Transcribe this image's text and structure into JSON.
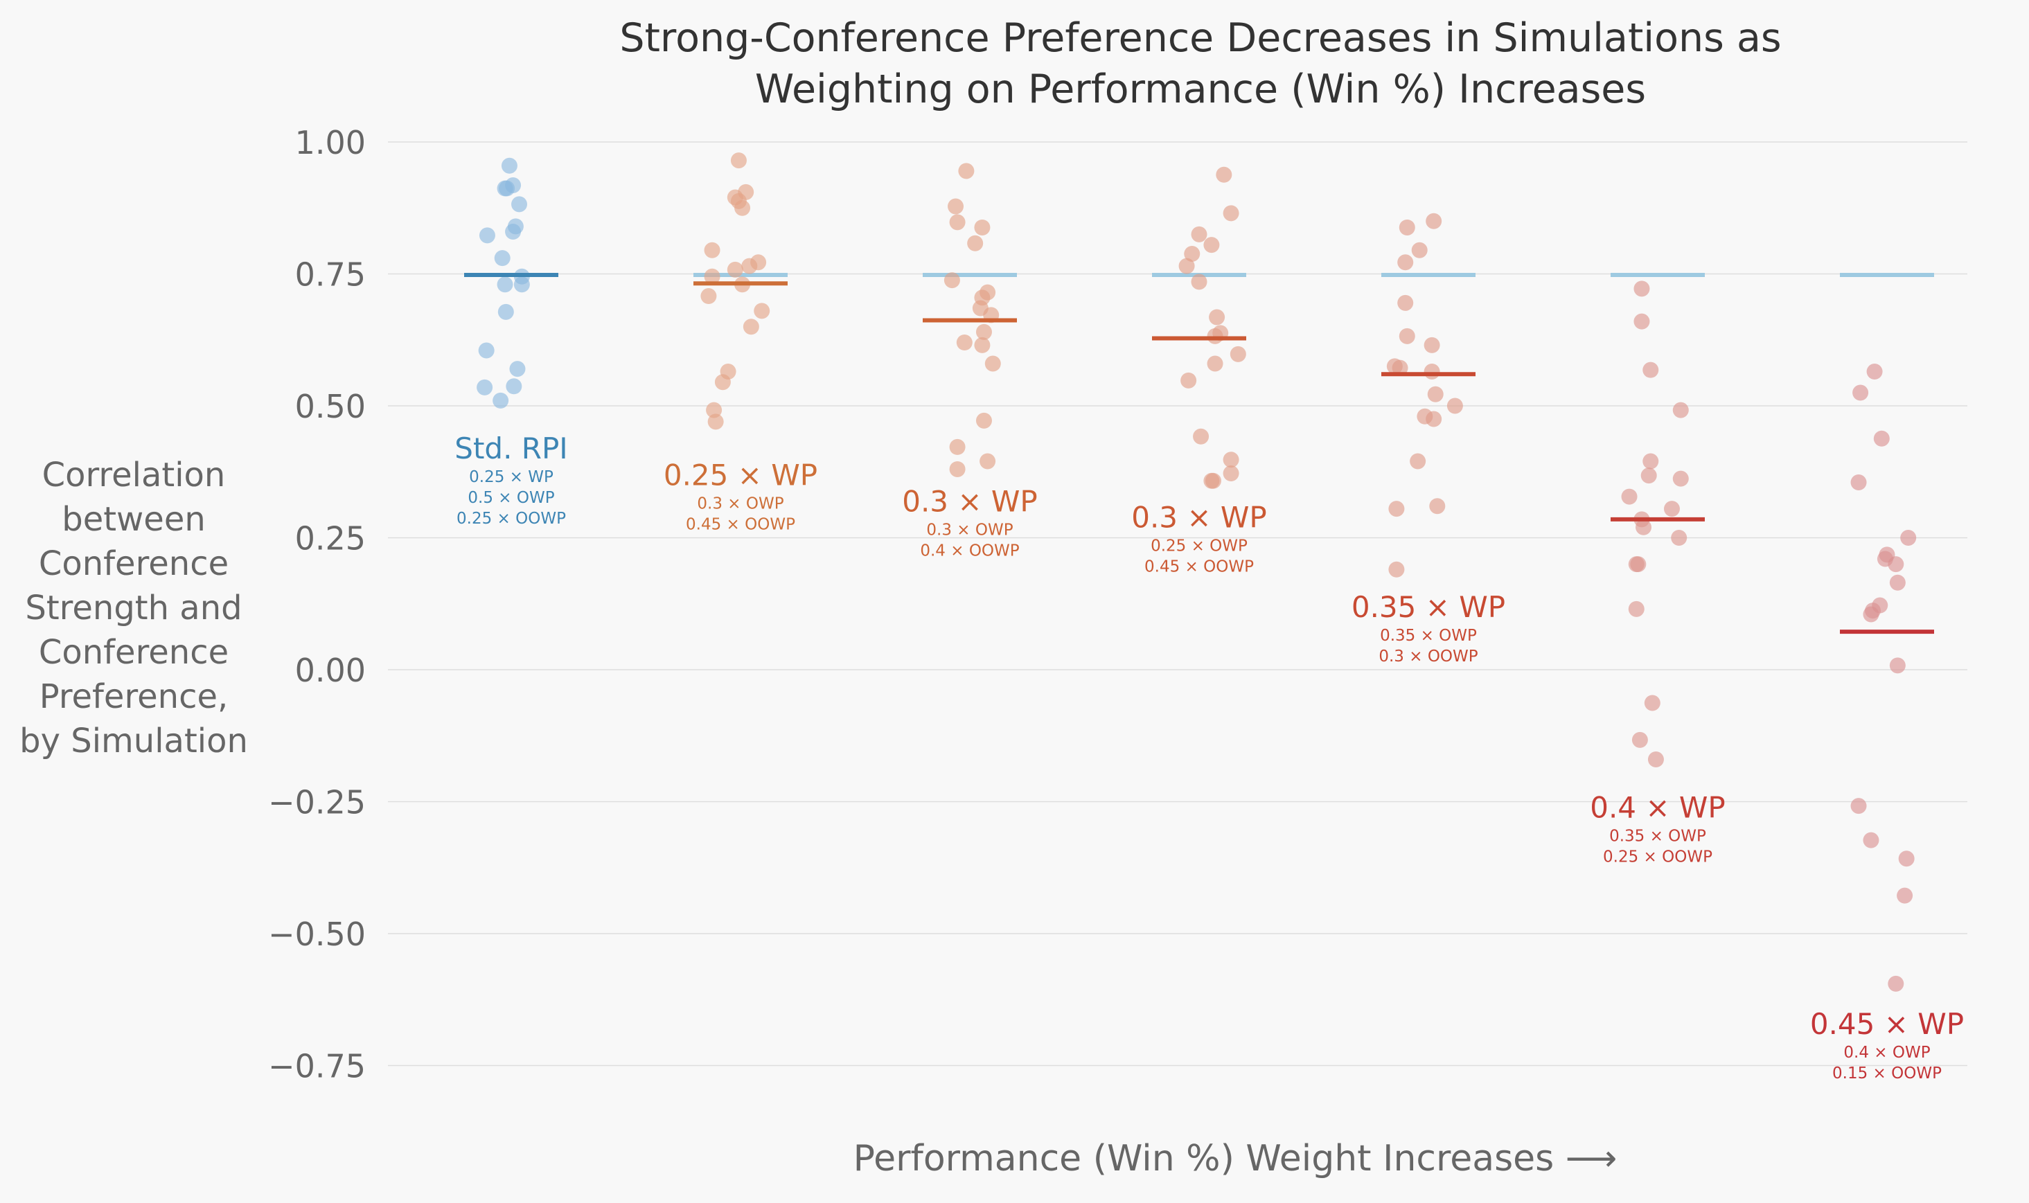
{
  "chart_data": {
    "type": "scatter",
    "title_lines": [
      "Strong-Conference Preference Decreases in Simulations as",
      "Weighting on Performance (Win %) Increases"
    ],
    "ylabel_lines": [
      "Correlation",
      "between",
      "Conference",
      "Strength and",
      "Conference",
      "Preference,",
      "by Simulation"
    ],
    "xlabel": "Performance (Win %) Weight Increases ⟶",
    "yticks": [
      1.0,
      0.75,
      0.5,
      0.25,
      0.0,
      -0.25,
      -0.5,
      -0.75
    ],
    "ytick_labels": [
      "1.00",
      "0.75",
      "0.50",
      "0.25",
      "0.00",
      "−0.25",
      "−0.50",
      "−0.75"
    ],
    "ylim": [
      -0.85,
      1.05
    ],
    "grid": true,
    "reference_line": 0.748,
    "colors": {
      "background": "#f8f8f8",
      "grid": "#dddddd",
      "axis_text": "#666666",
      "reference": "#9ecae1"
    },
    "groups": [
      {
        "label": "Std. RPI",
        "sub_lines": [
          "0.25 × WP",
          "0.5 × OWP",
          "0.25 × OOWP"
        ],
        "color": "#3d85b4",
        "point_color": "#8ab8df",
        "mean": 0.748,
        "label_y": 0.4,
        "points": [
          [
            -0.02,
            0.955
          ],
          [
            -0.07,
            0.912
          ],
          [
            -0.05,
            0.912
          ],
          [
            0.02,
            0.918
          ],
          [
            0.09,
            0.882
          ],
          [
            -0.27,
            0.823
          ],
          [
            0.02,
            0.83
          ],
          [
            0.05,
            0.84
          ],
          [
            -0.1,
            0.78
          ],
          [
            0.12,
            0.745
          ],
          [
            -0.07,
            0.73
          ],
          [
            0.12,
            0.73
          ],
          [
            -0.06,
            0.678
          ],
          [
            -0.28,
            0.605
          ],
          [
            0.07,
            0.57
          ],
          [
            -0.3,
            0.535
          ],
          [
            0.03,
            0.537
          ],
          [
            -0.12,
            0.51
          ]
        ]
      },
      {
        "label": "0.25 × WP",
        "sub_lines": [
          "0.3 × OWP",
          "0.45 × OOWP"
        ],
        "color": "#cd6f38",
        "point_color": "#e3a386",
        "mean": 0.732,
        "label_y": 0.35,
        "points": [
          [
            -0.02,
            0.965
          ],
          [
            0.06,
            0.905
          ],
          [
            -0.06,
            0.895
          ],
          [
            -0.02,
            0.888
          ],
          [
            0.02,
            0.875
          ],
          [
            -0.32,
            0.795
          ],
          [
            0.2,
            0.772
          ],
          [
            0.1,
            0.765
          ],
          [
            -0.06,
            0.758
          ],
          [
            -0.32,
            0.745
          ],
          [
            0.02,
            0.73
          ],
          [
            -0.36,
            0.708
          ],
          [
            0.24,
            0.68
          ],
          [
            0.12,
            0.65
          ],
          [
            -0.14,
            0.565
          ],
          [
            -0.2,
            0.545
          ],
          [
            -0.3,
            0.492
          ],
          [
            -0.28,
            0.47
          ]
        ]
      },
      {
        "label": "0.3 × WP",
        "sub_lines": [
          "0.3 × OWP",
          "0.4 × OOWP"
        ],
        "color": "#cd6334",
        "point_color": "#e2a085",
        "mean": 0.662,
        "label_y": 0.3,
        "points": [
          [
            -0.04,
            0.945
          ],
          [
            -0.16,
            0.878
          ],
          [
            -0.14,
            0.848
          ],
          [
            0.14,
            0.838
          ],
          [
            0.06,
            0.808
          ],
          [
            -0.2,
            0.738
          ],
          [
            0.2,
            0.715
          ],
          [
            0.14,
            0.705
          ],
          [
            0.12,
            0.685
          ],
          [
            0.24,
            0.672
          ],
          [
            0.16,
            0.64
          ],
          [
            -0.06,
            0.62
          ],
          [
            0.14,
            0.615
          ],
          [
            0.26,
            0.58
          ],
          [
            0.16,
            0.472
          ],
          [
            -0.14,
            0.422
          ],
          [
            0.2,
            0.395
          ],
          [
            -0.14,
            0.38
          ]
        ]
      },
      {
        "label": "0.3 × WP",
        "sub_lines": [
          "0.25 × OWP",
          "0.45 × OOWP"
        ],
        "color": "#cb5933",
        "point_color": "#e19d86",
        "mean": 0.628,
        "label_y": 0.27,
        "points": [
          [
            0.28,
            0.938
          ],
          [
            0.36,
            0.865
          ],
          [
            0.0,
            0.825
          ],
          [
            0.14,
            0.805
          ],
          [
            -0.08,
            0.788
          ],
          [
            -0.14,
            0.765
          ],
          [
            0.0,
            0.735
          ],
          [
            0.2,
            0.668
          ],
          [
            0.24,
            0.638
          ],
          [
            0.18,
            0.632
          ],
          [
            0.44,
            0.598
          ],
          [
            0.18,
            0.58
          ],
          [
            -0.12,
            0.548
          ],
          [
            0.02,
            0.442
          ],
          [
            0.36,
            0.398
          ],
          [
            0.36,
            0.372
          ],
          [
            0.14,
            0.358
          ],
          [
            0.16,
            0.358
          ]
        ]
      },
      {
        "label": "0.35 × WP",
        "sub_lines": [
          "0.35 × OWP",
          "0.3 × OOWP"
        ],
        "color": "#c84a32",
        "point_color": "#df9a88",
        "mean": 0.56,
        "label_y": 0.1,
        "points": [
          [
            0.06,
            0.85
          ],
          [
            -0.24,
            0.838
          ],
          [
            -0.1,
            0.795
          ],
          [
            -0.26,
            0.772
          ],
          [
            -0.26,
            0.695
          ],
          [
            -0.24,
            0.632
          ],
          [
            0.04,
            0.615
          ],
          [
            -0.38,
            0.575
          ],
          [
            -0.32,
            0.572
          ],
          [
            0.04,
            0.565
          ],
          [
            0.08,
            0.522
          ],
          [
            0.3,
            0.5
          ],
          [
            -0.04,
            0.48
          ],
          [
            0.06,
            0.475
          ],
          [
            -0.12,
            0.395
          ],
          [
            0.1,
            0.31
          ],
          [
            -0.36,
            0.305
          ],
          [
            -0.36,
            0.19
          ]
        ]
      },
      {
        "label": "0.4 × WP",
        "sub_lines": [
          "0.35 × OWP",
          "0.25 × OOWP"
        ],
        "color": "#c53f35",
        "point_color": "#dc958c",
        "mean": 0.285,
        "label_y": -0.28,
        "points": [
          [
            -0.18,
            0.722
          ],
          [
            -0.18,
            0.66
          ],
          [
            -0.08,
            0.568
          ],
          [
            0.26,
            0.492
          ],
          [
            -0.08,
            0.395
          ],
          [
            -0.1,
            0.368
          ],
          [
            0.26,
            0.362
          ],
          [
            -0.32,
            0.328
          ],
          [
            0.16,
            0.305
          ],
          [
            -0.18,
            0.285
          ],
          [
            -0.16,
            0.27
          ],
          [
            0.24,
            0.25
          ],
          [
            -0.24,
            0.2
          ],
          [
            -0.22,
            0.2
          ],
          [
            -0.24,
            0.115
          ],
          [
            -0.06,
            -0.063
          ],
          [
            -0.2,
            -0.133
          ],
          [
            -0.02,
            -0.17
          ]
        ]
      },
      {
        "label": "0.45 × WP",
        "sub_lines": [
          "0.4 × OWP",
          "0.15 × OOWP"
        ],
        "color": "#c33538",
        "point_color": "#da9090",
        "mean": 0.072,
        "label_y": -0.69,
        "points": [
          [
            -0.14,
            0.565
          ],
          [
            -0.3,
            0.525
          ],
          [
            -0.06,
            0.438
          ],
          [
            -0.32,
            0.355
          ],
          [
            0.24,
            0.25
          ],
          [
            0.0,
            0.218
          ],
          [
            -0.02,
            0.21
          ],
          [
            0.1,
            0.2
          ],
          [
            0.12,
            0.165
          ],
          [
            -0.08,
            0.122
          ],
          [
            -0.16,
            0.112
          ],
          [
            -0.18,
            0.105
          ],
          [
            0.12,
            0.008
          ],
          [
            -0.32,
            -0.258
          ],
          [
            -0.18,
            -0.323
          ],
          [
            0.22,
            -0.358
          ],
          [
            0.2,
            -0.428
          ],
          [
            0.1,
            -0.595
          ]
        ]
      }
    ]
  }
}
